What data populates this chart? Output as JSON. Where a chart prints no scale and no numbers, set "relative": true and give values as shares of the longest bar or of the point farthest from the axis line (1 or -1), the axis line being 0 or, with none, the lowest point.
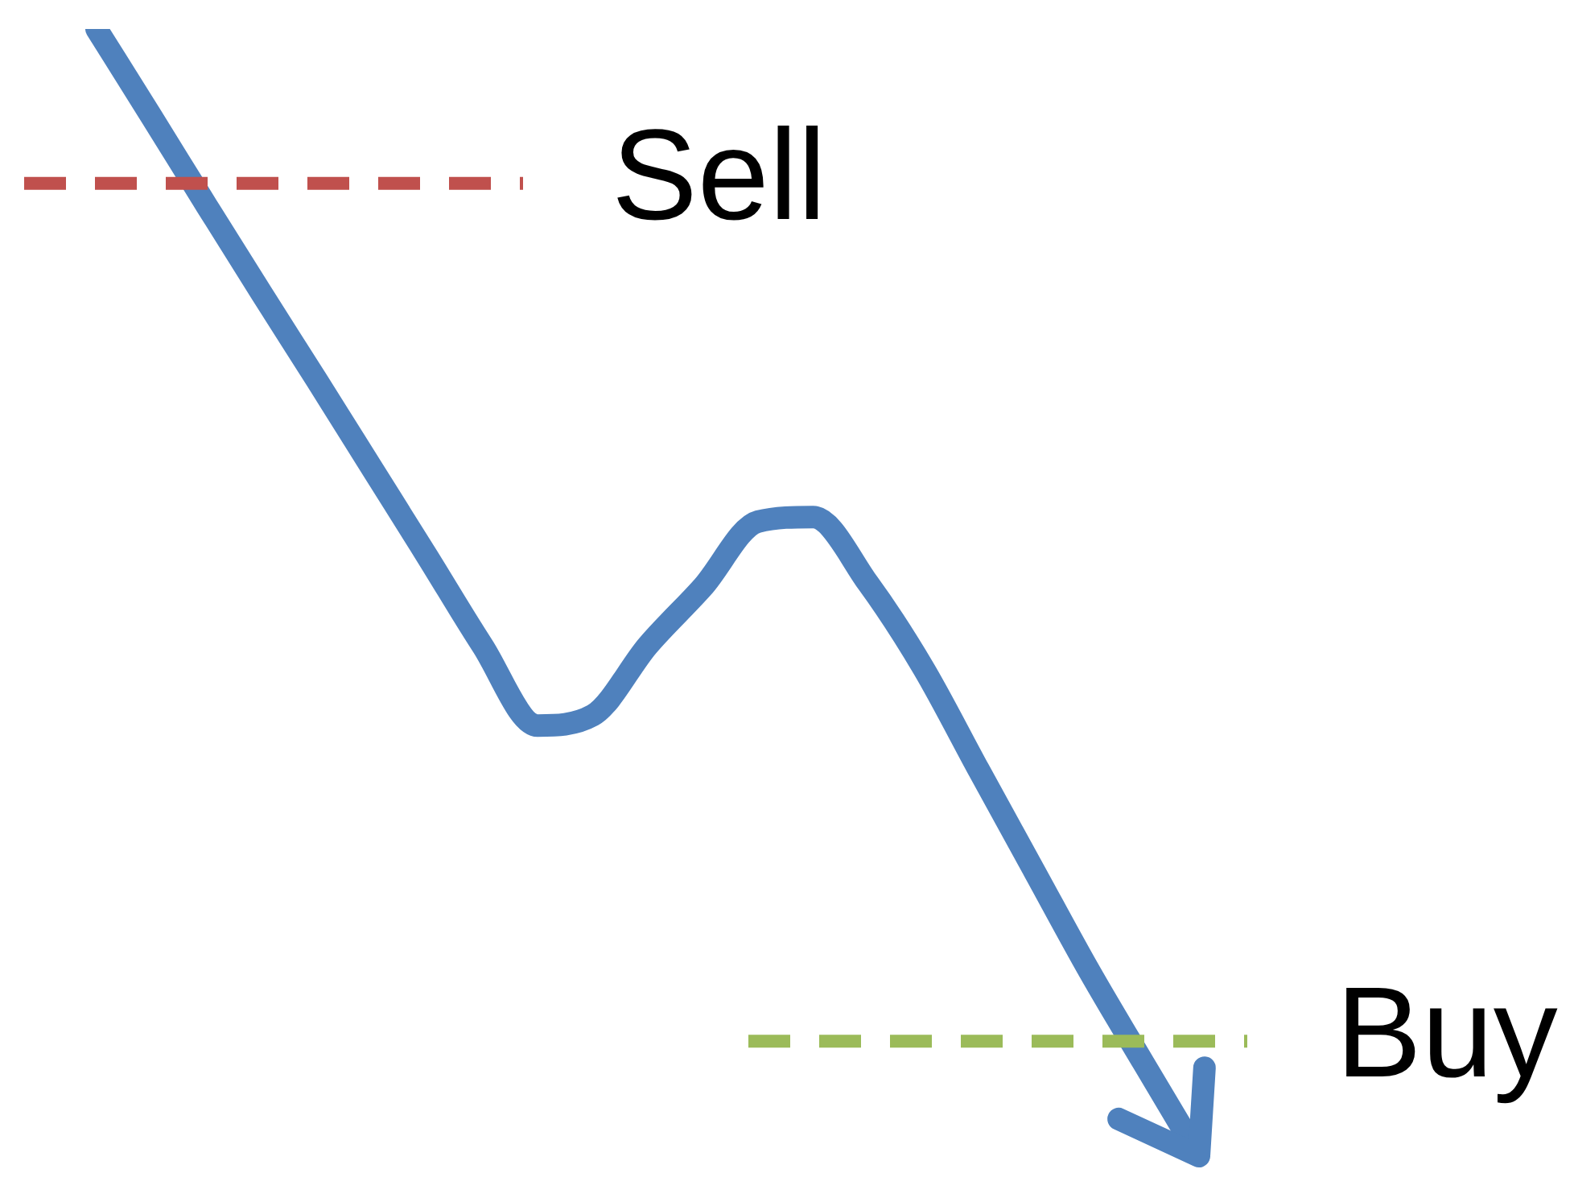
{
  "chart_data": {
    "type": "line",
    "relative": true,
    "categories": [
      null,
      null,
      null,
      null,
      null,
      null,
      null,
      null,
      null,
      null,
      null,
      null,
      null,
      null,
      null,
      null,
      null,
      null,
      null,
      null,
      null
    ],
    "series": [
      {
        "color": "#4f81bd",
        "values": [
          1.0,
          0.922,
          0.843,
          0.765,
          0.688,
          0.61,
          0.532,
          0.453,
          0.382,
          0.391,
          0.453,
          0.505,
          0.563,
          0.567,
          0.508,
          0.433,
          0.343,
          0.254,
          0.165,
          0.082,
          0.0
        ]
      }
    ],
    "ref_lines": [
      {
        "axis": "y",
        "value": 0.863,
        "label": "Sell",
        "color": "#c0504d",
        "line_style": "dashed"
      },
      {
        "axis": "y",
        "value": 0.102,
        "label": "Buy",
        "color": "#9bbb59",
        "line_style": "dashed"
      }
    ]
  }
}
